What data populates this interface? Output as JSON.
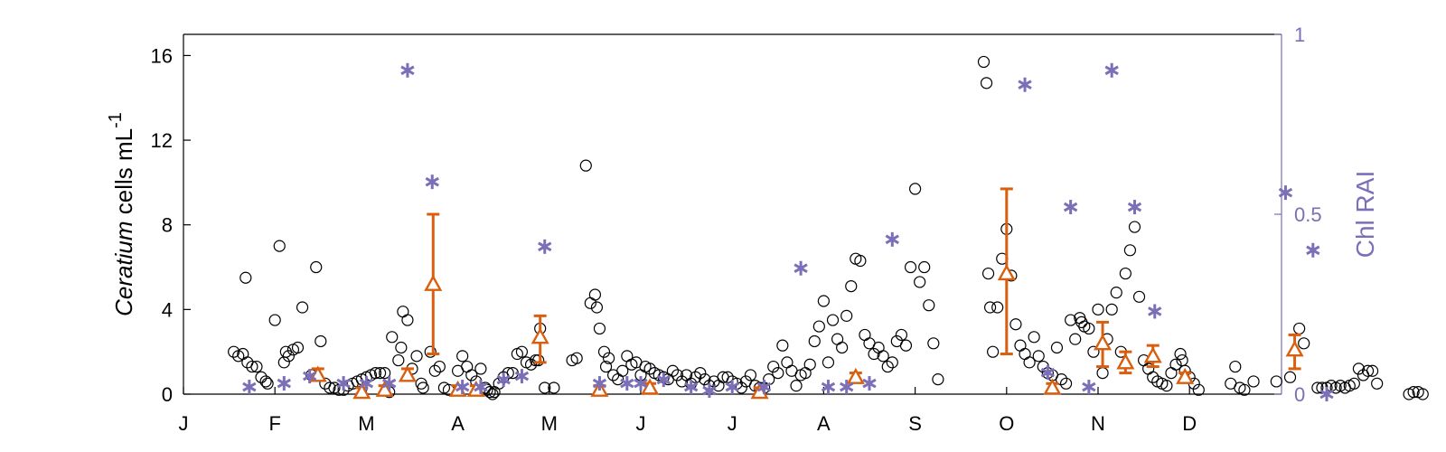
{
  "colors": {
    "axis": "#000000",
    "circle": "#000000",
    "star": "#7b6fb8",
    "triangle": "#d95f0e",
    "right_axis": "#7b6fb8"
  },
  "chart_data": {
    "type": "scatter",
    "title": "",
    "xlabel": "",
    "ylabel": {
      "italic": "Ceratium",
      "rest": " cells mL",
      "sup": "-1"
    },
    "ylabel_right": "Chl RAI",
    "x_tick_labels": [
      "J",
      "F",
      "M",
      "A",
      "M",
      "J",
      "J",
      "A",
      "S",
      "O",
      "N",
      "D"
    ],
    "xlim_months": [
      0,
      12
    ],
    "ylim": [
      0,
      17
    ],
    "y_ticks": [
      0,
      4,
      8,
      12,
      16
    ],
    "ylim_right": [
      0,
      1
    ],
    "y_ticks_right": [
      "0",
      "0.5",
      "1"
    ],
    "grid": false,
    "legend": "none",
    "series": [
      {
        "marker": "circle",
        "axis": "left",
        "points": [
          [
            0.55,
            2.0
          ],
          [
            0.6,
            1.8
          ],
          [
            0.65,
            1.9
          ],
          [
            0.7,
            1.5
          ],
          [
            0.75,
            1.3
          ],
          [
            0.68,
            5.5
          ],
          [
            0.8,
            1.3
          ],
          [
            0.85,
            0.8
          ],
          [
            0.9,
            0.6
          ],
          [
            0.92,
            0.5
          ],
          [
            1.0,
            3.5
          ],
          [
            1.05,
            7.0
          ],
          [
            1.1,
            1.5
          ],
          [
            1.12,
            2.0
          ],
          [
            1.15,
            1.8
          ],
          [
            1.2,
            2.1
          ],
          [
            1.25,
            2.2
          ],
          [
            1.3,
            4.1
          ],
          [
            1.4,
            0.9
          ],
          [
            1.45,
            6.0
          ],
          [
            1.5,
            2.5
          ],
          [
            1.55,
            0.5
          ],
          [
            1.6,
            0.3
          ],
          [
            1.65,
            0.3
          ],
          [
            1.7,
            0.2
          ],
          [
            1.75,
            0.2
          ],
          [
            1.8,
            0.4
          ],
          [
            1.85,
            0.5
          ],
          [
            1.9,
            0.6
          ],
          [
            1.95,
            0.7
          ],
          [
            2.0,
            0.8
          ],
          [
            2.05,
            0.9
          ],
          [
            2.1,
            1.0
          ],
          [
            2.15,
            1.0
          ],
          [
            2.2,
            1.0
          ],
          [
            2.25,
            0.1
          ],
          [
            2.28,
            2.7
          ],
          [
            2.35,
            1.6
          ],
          [
            2.38,
            2.2
          ],
          [
            2.4,
            3.9
          ],
          [
            2.45,
            3.5
          ],
          [
            2.5,
            1.2
          ],
          [
            2.55,
            1.8
          ],
          [
            2.6,
            0.5
          ],
          [
            2.62,
            0.3
          ],
          [
            2.7,
            2.0
          ],
          [
            2.75,
            1.1
          ],
          [
            2.8,
            1.3
          ],
          [
            2.85,
            0.3
          ],
          [
            2.9,
            0.2
          ],
          [
            3.0,
            1.1
          ],
          [
            3.05,
            1.8
          ],
          [
            3.1,
            1.3
          ],
          [
            3.15,
            0.9
          ],
          [
            3.2,
            0.6
          ],
          [
            3.25,
            1.2
          ],
          [
            3.3,
            0.3
          ],
          [
            3.32,
            0.2
          ],
          [
            3.35,
            0.1
          ],
          [
            3.38,
            0.0
          ],
          [
            3.4,
            0.1
          ],
          [
            3.45,
            0.5
          ],
          [
            3.5,
            0.8
          ],
          [
            3.55,
            1.0
          ],
          [
            3.6,
            1.0
          ],
          [
            3.65,
            1.9
          ],
          [
            3.7,
            2.0
          ],
          [
            3.75,
            1.5
          ],
          [
            3.8,
            1.4
          ],
          [
            3.85,
            1.6
          ],
          [
            3.88,
            1.6
          ],
          [
            3.9,
            3.1
          ],
          [
            3.95,
            0.3
          ],
          [
            4.05,
            0.3
          ],
          [
            4.25,
            1.6
          ],
          [
            4.3,
            1.7
          ],
          [
            4.4,
            10.8
          ],
          [
            4.45,
            4.3
          ],
          [
            4.5,
            4.7
          ],
          [
            4.52,
            4.1
          ],
          [
            4.55,
            3.1
          ],
          [
            4.6,
            2.0
          ],
          [
            4.62,
            1.3
          ],
          [
            4.65,
            1.7
          ],
          [
            4.7,
            0.9
          ],
          [
            4.75,
            0.7
          ],
          [
            4.8,
            1.1
          ],
          [
            4.85,
            1.8
          ],
          [
            4.9,
            1.4
          ],
          [
            4.95,
            1.5
          ],
          [
            5.0,
            0.9
          ],
          [
            5.05,
            1.3
          ],
          [
            5.1,
            1.2
          ],
          [
            5.15,
            1.0
          ],
          [
            5.2,
            0.9
          ],
          [
            5.25,
            0.8
          ],
          [
            5.3,
            0.7
          ],
          [
            5.35,
            1.1
          ],
          [
            5.4,
            0.9
          ],
          [
            5.45,
            0.6
          ],
          [
            5.5,
            0.9
          ],
          [
            5.55,
            0.5
          ],
          [
            5.6,
            0.8
          ],
          [
            5.65,
            1.0
          ],
          [
            5.7,
            0.7
          ],
          [
            5.75,
            0.4
          ],
          [
            5.8,
            0.6
          ],
          [
            5.85,
            0.4
          ],
          [
            5.9,
            0.8
          ],
          [
            5.95,
            0.8
          ],
          [
            6.0,
            0.6
          ],
          [
            6.05,
            0.5
          ],
          [
            6.1,
            0.3
          ],
          [
            6.15,
            0.6
          ],
          [
            6.2,
            0.9
          ],
          [
            6.25,
            0.4
          ],
          [
            6.3,
            0.3
          ],
          [
            6.35,
            0.3
          ],
          [
            6.4,
            0.7
          ],
          [
            6.45,
            1.3
          ],
          [
            6.5,
            1.0
          ],
          [
            6.55,
            2.3
          ],
          [
            6.6,
            1.5
          ],
          [
            6.65,
            1.1
          ],
          [
            6.7,
            0.4
          ],
          [
            6.75,
            0.9
          ],
          [
            6.8,
            1.0
          ],
          [
            6.85,
            1.4
          ],
          [
            6.9,
            2.5
          ],
          [
            6.95,
            3.2
          ],
          [
            7.0,
            4.4
          ],
          [
            7.05,
            1.5
          ],
          [
            7.1,
            3.5
          ],
          [
            7.15,
            2.6
          ],
          [
            7.2,
            2.2
          ],
          [
            7.25,
            3.7
          ],
          [
            7.3,
            5.1
          ],
          [
            7.35,
            6.4
          ],
          [
            7.4,
            6.3
          ],
          [
            7.45,
            2.8
          ],
          [
            7.5,
            2.4
          ],
          [
            7.55,
            1.9
          ],
          [
            7.6,
            2.2
          ],
          [
            7.65,
            1.8
          ],
          [
            7.7,
            1.3
          ],
          [
            7.75,
            1.5
          ],
          [
            7.8,
            2.5
          ],
          [
            7.85,
            2.8
          ],
          [
            7.9,
            2.3
          ],
          [
            7.95,
            6.0
          ],
          [
            8.0,
            9.7
          ],
          [
            8.05,
            5.3
          ],
          [
            8.1,
            6.0
          ],
          [
            8.15,
            4.2
          ],
          [
            8.2,
            2.4
          ],
          [
            8.25,
            0.7
          ],
          [
            8.75,
            15.7
          ],
          [
            8.78,
            14.7
          ],
          [
            8.8,
            5.7
          ],
          [
            8.82,
            4.1
          ],
          [
            8.85,
            2.0
          ],
          [
            8.9,
            4.1
          ],
          [
            8.95,
            6.4
          ],
          [
            9.0,
            7.8
          ],
          [
            9.05,
            5.6
          ],
          [
            9.1,
            3.3
          ],
          [
            9.15,
            2.3
          ],
          [
            9.2,
            1.9
          ],
          [
            9.25,
            1.5
          ],
          [
            9.3,
            2.7
          ],
          [
            9.35,
            1.8
          ],
          [
            9.4,
            1.3
          ],
          [
            9.45,
            1.0
          ],
          [
            9.5,
            0.9
          ],
          [
            9.55,
            2.2
          ],
          [
            9.6,
            0.7
          ],
          [
            9.65,
            0.5
          ],
          [
            9.7,
            3.5
          ],
          [
            9.75,
            2.6
          ],
          [
            9.8,
            3.6
          ],
          [
            9.82,
            3.4
          ],
          [
            9.85,
            3.2
          ],
          [
            9.9,
            3.1
          ],
          [
            9.95,
            2.0
          ],
          [
            10.0,
            4.0
          ],
          [
            10.05,
            1.0
          ],
          [
            10.1,
            2.6
          ],
          [
            10.15,
            4.0
          ],
          [
            10.2,
            4.8
          ],
          [
            10.25,
            2.0
          ],
          [
            10.3,
            5.7
          ],
          [
            10.35,
            6.8
          ],
          [
            10.4,
            7.9
          ],
          [
            10.45,
            4.6
          ],
          [
            10.5,
            1.6
          ],
          [
            10.55,
            1.2
          ],
          [
            10.6,
            0.8
          ],
          [
            10.65,
            0.6
          ],
          [
            10.7,
            0.5
          ],
          [
            10.75,
            0.4
          ],
          [
            10.8,
            1.0
          ],
          [
            10.85,
            1.4
          ],
          [
            10.9,
            1.9
          ],
          [
            10.92,
            1.6
          ],
          [
            10.95,
            1.1
          ],
          [
            11.0,
            0.8
          ],
          [
            11.05,
            0.5
          ],
          [
            11.1,
            0.2
          ],
          [
            11.45,
            0.5
          ],
          [
            11.5,
            1.3
          ],
          [
            11.55,
            0.3
          ],
          [
            11.6,
            0.2
          ],
          [
            11.7,
            0.6
          ],
          [
            11.95,
            0.6
          ],
          [
            12.1,
            0.8
          ],
          [
            12.2,
            3.1
          ],
          [
            12.25,
            2.4
          ],
          [
            12.4,
            0.3
          ],
          [
            12.45,
            0.3
          ],
          [
            12.5,
            0.3
          ],
          [
            12.55,
            0.4
          ],
          [
            12.6,
            0.3
          ],
          [
            12.65,
            0.4
          ],
          [
            12.7,
            0.3
          ],
          [
            12.75,
            0.4
          ],
          [
            12.8,
            0.5
          ],
          [
            12.85,
            1.2
          ],
          [
            12.9,
            0.9
          ],
          [
            12.95,
            1.1
          ],
          [
            13.0,
            1.1
          ],
          [
            13.05,
            0.5
          ],
          [
            13.4,
            0.0
          ],
          [
            13.45,
            0.1
          ],
          [
            13.5,
            0.1
          ],
          [
            13.55,
            0.0
          ]
        ]
      },
      {
        "marker": "triangle",
        "axis": "left",
        "color": "#d95f0e",
        "points": [
          {
            "x": 1.47,
            "y": 0.9,
            "lo": 0.7,
            "hi": 1.2
          },
          {
            "x": 1.95,
            "y": 0.1,
            "lo": 0.0,
            "hi": 0.3
          },
          {
            "x": 2.2,
            "y": 0.2,
            "lo": 0.0,
            "hi": 0.4
          },
          {
            "x": 2.45,
            "y": 0.9,
            "lo": 0.7,
            "hi": 1.2
          },
          {
            "x": 2.73,
            "y": 5.2,
            "lo": 1.9,
            "hi": 8.5
          },
          {
            "x": 3.0,
            "y": 0.2,
            "lo": 0.0,
            "hi": 0.4
          },
          {
            "x": 3.2,
            "y": 0.2,
            "lo": 0.0,
            "hi": 0.4
          },
          {
            "x": 3.9,
            "y": 2.7,
            "lo": 1.5,
            "hi": 3.7
          },
          {
            "x": 4.55,
            "y": 0.2,
            "lo": 0.0,
            "hi": 0.4
          },
          {
            "x": 5.1,
            "y": 0.3,
            "lo": 0.1,
            "hi": 0.5
          },
          {
            "x": 6.3,
            "y": 0.1,
            "lo": 0.0,
            "hi": 0.3
          },
          {
            "x": 7.35,
            "y": 0.8,
            "lo": 0.6,
            "hi": 1.0
          },
          {
            "x": 9.0,
            "y": 5.7,
            "lo": 1.9,
            "hi": 9.7
          },
          {
            "x": 9.5,
            "y": 0.3,
            "lo": 0.1,
            "hi": 0.5
          },
          {
            "x": 10.05,
            "y": 2.4,
            "lo": 1.3,
            "hi": 3.4
          },
          {
            "x": 10.3,
            "y": 1.5,
            "lo": 1.0,
            "hi": 2.0
          },
          {
            "x": 10.6,
            "y": 1.8,
            "lo": 1.3,
            "hi": 2.3
          },
          {
            "x": 10.95,
            "y": 0.8,
            "lo": 0.6,
            "hi": 1.0
          },
          {
            "x": 12.15,
            "y": 2.1,
            "lo": 1.2,
            "hi": 2.8
          }
        ]
      },
      {
        "marker": "asterisk",
        "axis": "right",
        "color": "#7b6fb8",
        "points": [
          [
            0.72,
            0.02
          ],
          [
            1.1,
            0.03
          ],
          [
            1.38,
            0.05
          ],
          [
            1.75,
            0.03
          ],
          [
            2.0,
            0.03
          ],
          [
            2.25,
            0.03
          ],
          [
            2.45,
            0.9
          ],
          [
            2.72,
            0.59
          ],
          [
            3.05,
            0.02
          ],
          [
            3.25,
            0.02
          ],
          [
            3.5,
            0.04
          ],
          [
            3.7,
            0.05
          ],
          [
            3.95,
            0.41
          ],
          [
            4.55,
            0.03
          ],
          [
            4.85,
            0.03
          ],
          [
            5.0,
            0.03
          ],
          [
            5.25,
            0.04
          ],
          [
            5.55,
            0.02
          ],
          [
            5.75,
            0.01
          ],
          [
            6.0,
            0.02
          ],
          [
            6.35,
            0.02
          ],
          [
            6.75,
            0.35
          ],
          [
            7.05,
            0.02
          ],
          [
            7.25,
            0.02
          ],
          [
            7.5,
            0.03
          ],
          [
            7.75,
            0.43
          ],
          [
            9.2,
            0.86
          ],
          [
            9.45,
            0.06
          ],
          [
            9.7,
            0.52
          ],
          [
            9.9,
            0.02
          ],
          [
            10.15,
            0.9
          ],
          [
            10.4,
            0.52
          ],
          [
            10.62,
            0.23
          ],
          [
            12.05,
            0.56
          ],
          [
            12.35,
            0.4
          ],
          [
            12.5,
            0.0
          ]
        ]
      }
    ]
  }
}
